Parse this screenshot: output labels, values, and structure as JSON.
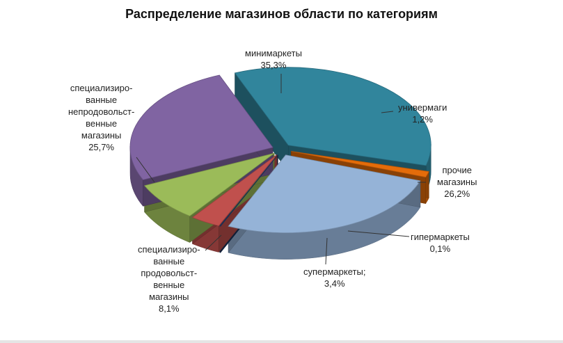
{
  "chart_data": {
    "type": "pie",
    "title": "Распределение магазинов области по категориям",
    "slices": [
      {
        "label": "минимаркеты\n35,3%",
        "value": 35.3,
        "color": "#31859C"
      },
      {
        "label": "универмаги\n1,2%",
        "value": 1.2,
        "color": "#E46C0A"
      },
      {
        "label": "прочие\nмагазины\n26,2%",
        "value": 26.2,
        "color": "#95B3D7"
      },
      {
        "label": "гипермаркеты\n0,1%",
        "value": 0.1,
        "color": "#1F3864"
      },
      {
        "label": "супермаркеты;\n3,4%",
        "value": 3.4,
        "color": "#C0504D"
      },
      {
        "label": "специализиро-\nванные\nпродовольст-\nвенные\nмагазины\n8,1%",
        "value": 8.1,
        "color": "#9BBB59"
      },
      {
        "label": "специализиро-\nванные\nнепродовольст-\nвенные\nмагазины\n25,7%",
        "value": 25.7,
        "color": "#8064A2"
      }
    ]
  }
}
